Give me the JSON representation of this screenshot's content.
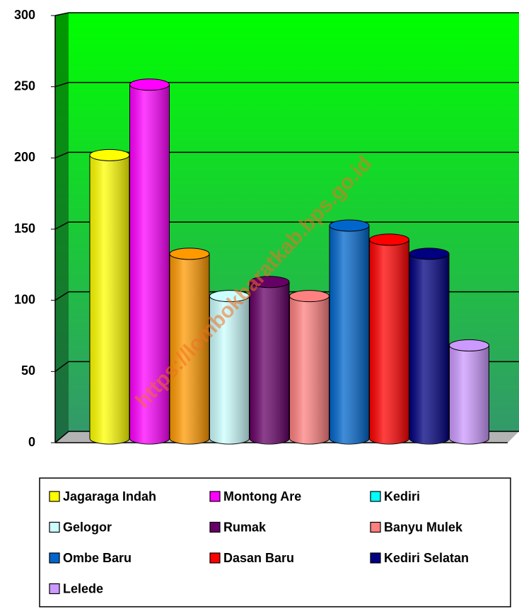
{
  "chart_data": {
    "type": "bar",
    "watermark": "https://lombokbaratkab.bps.go.id",
    "ylim": [
      0,
      300
    ],
    "yticks": [
      0,
      50,
      100,
      150,
      200,
      250,
      300
    ],
    "grid": true,
    "legend": "bottom",
    "series": [
      {
        "name": "Jagaraga Indah",
        "color": "#ffff00",
        "values": [
          200
        ]
      },
      {
        "name": "Montong Are",
        "color": "#ff00ff",
        "values": [
          250
        ]
      },
      {
        "name": "Kediri",
        "color": "#ff9900",
        "legend_color": "#00ffff",
        "values": [
          130
        ]
      },
      {
        "name": "Gelogor",
        "color": "#ccffff",
        "values": [
          100
        ]
      },
      {
        "name": "Rumak",
        "color": "#660066",
        "values": [
          110
        ]
      },
      {
        "name": "Banyu Mulek",
        "color": "#ff8080",
        "values": [
          100
        ]
      },
      {
        "name": "Ombe Baru",
        "color": "#0066cc",
        "values": [
          150
        ]
      },
      {
        "name": "Dasan Baru",
        "color": "#ff0000",
        "values": [
          140
        ]
      },
      {
        "name": "Kediri Selatan",
        "color": "#000080",
        "values": [
          130
        ]
      },
      {
        "name": "Lelede",
        "color": "#cc99ff",
        "values": [
          65
        ]
      }
    ]
  }
}
